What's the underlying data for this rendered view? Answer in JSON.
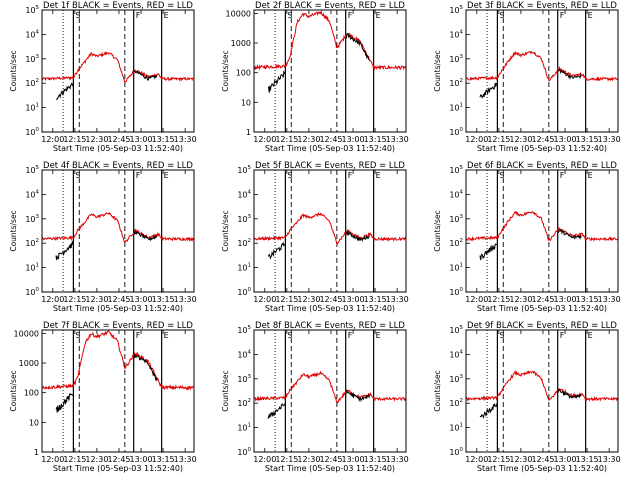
{
  "chart_data": [
    {
      "type": "line",
      "title": "Det 1f BLACK = Events, RED = LLD",
      "xlabel": "Start Time (05-Sep-03 11:52:40)",
      "ylabel": "Counts/sec",
      "yscale": "log",
      "ylim": [
        1,
        100000
      ],
      "xlim": [
        "11:52:40",
        "13:36:00"
      ],
      "xticks": [
        "12:00",
        "12:15",
        "12:30",
        "12:45",
        "13:00",
        "13:15",
        "13:30"
      ],
      "yticks_exp": [
        0,
        1,
        2,
        3,
        4,
        5
      ],
      "peak": 1800,
      "series": [
        {
          "name": "BLACK = Events",
          "color": "#000000"
        },
        {
          "name": "RED = LLD",
          "color": "#e00000"
        }
      ],
      "markers": [
        {
          "time": "12:07",
          "style": "dotted",
          "label": ""
        },
        {
          "time": "12:14",
          "style": "solid",
          "label": "S"
        },
        {
          "time": "12:18",
          "style": "dashed",
          "label": ""
        },
        {
          "time": "12:49",
          "style": "dashed",
          "label": ""
        },
        {
          "time": "12:55",
          "style": "solid",
          "label": "F"
        },
        {
          "time": "13:14",
          "style": "solid",
          "label": "E"
        }
      ]
    },
    {
      "type": "line",
      "title": "Det 2f BLACK = Events, RED = LLD",
      "xlabel": "Start Time (05-Sep-03 11:52:40)",
      "ylabel": "Counts/sec",
      "yscale": "log",
      "ylim": [
        1,
        13000
      ],
      "xlim": [
        "11:52:40",
        "13:36:00"
      ],
      "xticks": [
        "12:00",
        "12:15",
        "12:30",
        "12:45",
        "13:00",
        "13:15",
        "13:30"
      ],
      "yticks_labels": [
        "1",
        "10",
        "100",
        "1000",
        "10000"
      ],
      "peak": 11000,
      "series": [
        {
          "name": "BLACK = Events",
          "color": "#000000"
        },
        {
          "name": "RED = LLD",
          "color": "#e00000"
        }
      ],
      "markers": [
        {
          "time": "12:07",
          "style": "dotted",
          "label": ""
        },
        {
          "time": "12:14",
          "style": "solid",
          "label": "S"
        },
        {
          "time": "12:18",
          "style": "dashed",
          "label": ""
        },
        {
          "time": "12:49",
          "style": "dashed",
          "label": ""
        },
        {
          "time": "12:55",
          "style": "solid",
          "label": "F"
        },
        {
          "time": "13:14",
          "style": "solid",
          "label": "E"
        }
      ]
    },
    {
      "type": "line",
      "title": "Det 3f BLACK = Events, RED = LLD",
      "xlabel": "Start Time (05-Sep-03 11:52:40)",
      "ylabel": "Counts/sec",
      "yscale": "log",
      "ylim": [
        1,
        100000
      ],
      "xlim": [
        "11:52:40",
        "13:36:00"
      ],
      "xticks": [
        "12:00",
        "12:15",
        "12:30",
        "12:45",
        "13:00",
        "13:15",
        "13:30"
      ],
      "yticks_exp": [
        0,
        1,
        2,
        3,
        4,
        5
      ],
      "peak": 2000,
      "series": [
        {
          "name": "BLACK = Events",
          "color": "#000000"
        },
        {
          "name": "RED = LLD",
          "color": "#e00000"
        }
      ],
      "markers": [
        {
          "time": "12:07",
          "style": "dotted",
          "label": ""
        },
        {
          "time": "12:14",
          "style": "solid",
          "label": "S"
        },
        {
          "time": "12:18",
          "style": "dashed",
          "label": ""
        },
        {
          "time": "12:49",
          "style": "dashed",
          "label": ""
        },
        {
          "time": "12:55",
          "style": "solid",
          "label": "F"
        },
        {
          "time": "13:14",
          "style": "solid",
          "label": "E"
        }
      ]
    },
    {
      "type": "line",
      "title": "Det 4f BLACK = Events, RED = LLD",
      "xlabel": "Start Time (05-Sep-03 11:52:40)",
      "ylabel": "Counts/sec",
      "yscale": "log",
      "ylim": [
        1,
        100000
      ],
      "xlim": [
        "11:52:40",
        "13:36:00"
      ],
      "xticks": [
        "12:00",
        "12:15",
        "12:30",
        "12:45",
        "13:00",
        "13:15",
        "13:30"
      ],
      "yticks_exp": [
        0,
        1,
        2,
        3,
        4,
        5
      ],
      "peak": 1700,
      "series": [
        {
          "name": "BLACK = Events",
          "color": "#000000"
        },
        {
          "name": "RED = LLD",
          "color": "#e00000"
        }
      ],
      "markers": [
        {
          "time": "12:07",
          "style": "dotted",
          "label": ""
        },
        {
          "time": "12:14",
          "style": "solid",
          "label": "S"
        },
        {
          "time": "12:18",
          "style": "dashed",
          "label": ""
        },
        {
          "time": "12:49",
          "style": "dashed",
          "label": ""
        },
        {
          "time": "12:55",
          "style": "solid",
          "label": "F"
        },
        {
          "time": "13:14",
          "style": "solid",
          "label": "E"
        }
      ]
    },
    {
      "type": "line",
      "title": "Det 5f BLACK = Events, RED = LLD",
      "xlabel": "Start Time (05-Sep-03 11:52:40)",
      "ylabel": "Counts/sec",
      "yscale": "log",
      "ylim": [
        1,
        100000
      ],
      "xlim": [
        "11:52:40",
        "13:36:00"
      ],
      "xticks": [
        "12:00",
        "12:15",
        "12:30",
        "12:45",
        "13:00",
        "13:15",
        "13:30"
      ],
      "yticks_exp": [
        0,
        1,
        2,
        3,
        4,
        5
      ],
      "peak": 1600,
      "series": [
        {
          "name": "BLACK = Events",
          "color": "#000000"
        },
        {
          "name": "RED = LLD",
          "color": "#e00000"
        }
      ],
      "markers": [
        {
          "time": "12:07",
          "style": "dotted",
          "label": ""
        },
        {
          "time": "12:14",
          "style": "solid",
          "label": "S"
        },
        {
          "time": "12:18",
          "style": "dashed",
          "label": ""
        },
        {
          "time": "12:49",
          "style": "dashed",
          "label": ""
        },
        {
          "time": "12:55",
          "style": "solid",
          "label": "F"
        },
        {
          "time": "13:14",
          "style": "solid",
          "label": "E"
        }
      ]
    },
    {
      "type": "line",
      "title": "Det 6f BLACK = Events, RED = LLD",
      "xlabel": "Start Time (05-Sep-03 11:52:40)",
      "ylabel": "Counts/sec",
      "yscale": "log",
      "ylim": [
        1,
        100000
      ],
      "xlim": [
        "11:52:40",
        "13:36:00"
      ],
      "xticks": [
        "12:00",
        "12:15",
        "12:30",
        "12:45",
        "13:00",
        "13:15",
        "13:30"
      ],
      "yticks_exp": [
        0,
        1,
        2,
        3,
        4,
        5
      ],
      "peak": 2000,
      "series": [
        {
          "name": "BLACK = Events",
          "color": "#000000"
        },
        {
          "name": "RED = LLD",
          "color": "#e00000"
        }
      ],
      "markers": [
        {
          "time": "12:07",
          "style": "dotted",
          "label": ""
        },
        {
          "time": "12:14",
          "style": "solid",
          "label": "S"
        },
        {
          "time": "12:18",
          "style": "dashed",
          "label": ""
        },
        {
          "time": "12:49",
          "style": "dashed",
          "label": ""
        },
        {
          "time": "12:55",
          "style": "solid",
          "label": "F"
        },
        {
          "time": "13:14",
          "style": "solid",
          "label": "E"
        }
      ]
    },
    {
      "type": "line",
      "title": "Det 7f BLACK = Events, RED = LLD",
      "xlabel": "Start Time (05-Sep-03 11:52:40)",
      "ylabel": "Counts/sec",
      "yscale": "log",
      "ylim": [
        1,
        13000
      ],
      "xlim": [
        "11:52:40",
        "13:36:00"
      ],
      "xticks": [
        "12:00",
        "12:15",
        "12:30",
        "12:45",
        "13:00",
        "13:15",
        "13:30"
      ],
      "yticks_labels": [
        "1",
        "10",
        "100",
        "1000",
        "10000"
      ],
      "peak": 11000,
      "series": [
        {
          "name": "BLACK = Events",
          "color": "#000000"
        },
        {
          "name": "RED = LLD",
          "color": "#e00000"
        }
      ],
      "markers": [
        {
          "time": "12:07",
          "style": "dotted",
          "label": ""
        },
        {
          "time": "12:14",
          "style": "solid",
          "label": "S"
        },
        {
          "time": "12:18",
          "style": "dashed",
          "label": ""
        },
        {
          "time": "12:49",
          "style": "dashed",
          "label": ""
        },
        {
          "time": "12:55",
          "style": "solid",
          "label": "F"
        },
        {
          "time": "13:14",
          "style": "solid",
          "label": "E"
        }
      ]
    },
    {
      "type": "line",
      "title": "Det 8f BLACK = Events, RED = LLD",
      "xlabel": "Start Time (05-Sep-03 11:52:40)",
      "ylabel": "Counts/sec",
      "yscale": "log",
      "ylim": [
        1,
        100000
      ],
      "xlim": [
        "11:52:40",
        "13:36:00"
      ],
      "xticks": [
        "12:00",
        "12:15",
        "12:30",
        "12:45",
        "13:00",
        "13:15",
        "13:30"
      ],
      "yticks_exp": [
        0,
        1,
        2,
        3,
        4,
        5
      ],
      "peak": 1700,
      "series": [
        {
          "name": "BLACK = Events",
          "color": "#000000"
        },
        {
          "name": "RED = LLD",
          "color": "#e00000"
        }
      ],
      "markers": [
        {
          "time": "12:07",
          "style": "dotted",
          "label": ""
        },
        {
          "time": "12:14",
          "style": "solid",
          "label": "S"
        },
        {
          "time": "12:18",
          "style": "dashed",
          "label": ""
        },
        {
          "time": "12:49",
          "style": "dashed",
          "label": ""
        },
        {
          "time": "12:55",
          "style": "solid",
          "label": "F"
        },
        {
          "time": "13:14",
          "style": "solid",
          "label": "E"
        }
      ]
    },
    {
      "type": "line",
      "title": "Det 9f BLACK = Events, RED = LLD",
      "xlabel": "Start Time (05-Sep-03 11:52:40)",
      "ylabel": "Counts/sec",
      "yscale": "log",
      "ylim": [
        1,
        100000
      ],
      "xlim": [
        "11:52:40",
        "13:36:00"
      ],
      "xticks": [
        "12:00",
        "12:15",
        "12:30",
        "12:45",
        "13:00",
        "13:15",
        "13:30"
      ],
      "yticks_exp": [
        0,
        1,
        2,
        3,
        4,
        5
      ],
      "peak": 2000,
      "series": [
        {
          "name": "BLACK = Events",
          "color": "#000000"
        },
        {
          "name": "RED = LLD",
          "color": "#e00000"
        }
      ],
      "markers": [
        {
          "time": "12:07",
          "style": "dotted",
          "label": ""
        },
        {
          "time": "12:14",
          "style": "solid",
          "label": "S"
        },
        {
          "time": "12:18",
          "style": "dashed",
          "label": ""
        },
        {
          "time": "12:49",
          "style": "dashed",
          "label": ""
        },
        {
          "time": "12:55",
          "style": "solid",
          "label": "F"
        },
        {
          "time": "13:14",
          "style": "solid",
          "label": "E"
        }
      ]
    }
  ]
}
